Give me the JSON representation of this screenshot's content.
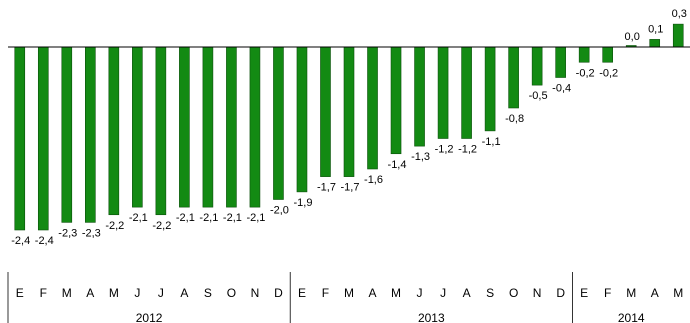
{
  "colors": {
    "bar": "#138a13",
    "bar_stroke": "#0b4f0b",
    "axis": "#000000"
  },
  "chart_data": {
    "type": "bar",
    "categories": [
      "E",
      "F",
      "M",
      "A",
      "M",
      "J",
      "J",
      "A",
      "S",
      "O",
      "N",
      "D",
      "E",
      "F",
      "M",
      "A",
      "M",
      "J",
      "J",
      "A",
      "S",
      "O",
      "N",
      "D",
      "E",
      "F",
      "M",
      "A",
      "M"
    ],
    "values": [
      -2.4,
      -2.4,
      -2.3,
      -2.3,
      -2.2,
      -2.1,
      -2.2,
      -2.1,
      -2.1,
      -2.1,
      -2.1,
      -2.0,
      -1.9,
      -1.7,
      -1.7,
      -1.6,
      -1.4,
      -1.3,
      -1.2,
      -1.2,
      -1.1,
      -0.8,
      -0.5,
      -0.4,
      -0.2,
      -0.2,
      0.0,
      0.1,
      0.3
    ],
    "labels": [
      "-2,4",
      "-2,4",
      "-2,3",
      "-2,3",
      "-2,2",
      "-2,1",
      "-2,2",
      "-2,1",
      "-2,1",
      "-2,1",
      "-2,1",
      "-2,0",
      "-1,9",
      "-1,7",
      "-1,7",
      "-1,6",
      "-1,4",
      "-1,3",
      "-1,2",
      "-1,2",
      "-1,1",
      "-0,8",
      "-0,5",
      "-0,4",
      "-0,2",
      "-0,2",
      "0,0",
      "0,1",
      "0,3"
    ],
    "groups": [
      {
        "name": "2012",
        "count": 12
      },
      {
        "name": "2013",
        "count": 12
      },
      {
        "name": "2014",
        "count": 5
      }
    ],
    "title": "",
    "xlabel": "",
    "ylabel": "",
    "ylim": [
      -2.4,
      0.3
    ],
    "grid": false,
    "legend": "none"
  }
}
